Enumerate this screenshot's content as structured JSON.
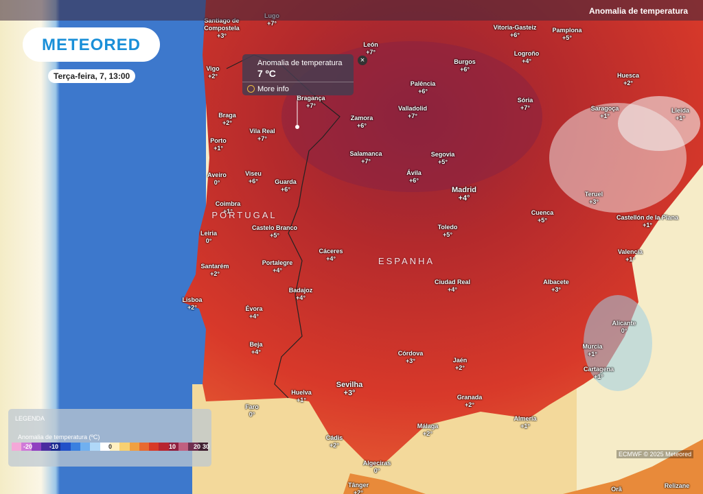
{
  "header": {
    "logo": "METEORED",
    "date": "Terça-feira, 7, 13:00",
    "layer": "Anomalia de temperatura"
  },
  "popup": {
    "title": "Anomalia de temperatura",
    "value": "7 ºC",
    "link": "More info"
  },
  "countries": [
    "PORTUGAL",
    "ESPANHA"
  ],
  "cities": [
    {
      "name": "Santiago de Compostela",
      "value": "+3°"
    },
    {
      "name": "Lugo",
      "value": "+7°"
    },
    {
      "name": "León",
      "value": "+7°"
    },
    {
      "name": "Vitoria-Gasteiz",
      "value": "+6°"
    },
    {
      "name": "Pamplona",
      "value": "+5°"
    },
    {
      "name": "Logroño",
      "value": "+4°"
    },
    {
      "name": "Burgos",
      "value": "+6°"
    },
    {
      "name": "Palência",
      "value": "+6°"
    },
    {
      "name": "Valladolid",
      "value": "+7°"
    },
    {
      "name": "Sória",
      "value": "+7°"
    },
    {
      "name": "Huesca",
      "value": "+2°"
    },
    {
      "name": "Saragoça",
      "value": "+1°"
    },
    {
      "name": "Lleida",
      "value": "+1°"
    },
    {
      "name": "Vigo",
      "value": "+2°"
    },
    {
      "name": "Braga",
      "value": "+2°"
    },
    {
      "name": "Vila Real",
      "value": "+7°"
    },
    {
      "name": "Bragança",
      "value": "+7°"
    },
    {
      "name": "Zamora",
      "value": "+6°"
    },
    {
      "name": "Porto",
      "value": "+1°"
    },
    {
      "name": "Aveiro",
      "value": "0°"
    },
    {
      "name": "Viseu",
      "value": "+6°"
    },
    {
      "name": "Guarda",
      "value": "+6°"
    },
    {
      "name": "Salamanca",
      "value": "+7°"
    },
    {
      "name": "Segovia",
      "value": "+5°"
    },
    {
      "name": "Ávila",
      "value": "+6°"
    },
    {
      "name": "Madrid",
      "value": "+4°"
    },
    {
      "name": "Teruel",
      "value": "+3°"
    },
    {
      "name": "Coimbra",
      "value": "+1°"
    },
    {
      "name": "Castelo Branco",
      "value": "+5°"
    },
    {
      "name": "Cuenca",
      "value": "+5°"
    },
    {
      "name": "Castellón de la Plana",
      "value": "+1°"
    },
    {
      "name": "Toledo",
      "value": "+5°"
    },
    {
      "name": "Leiria",
      "value": "0°"
    },
    {
      "name": "Valencia",
      "value": "+1°"
    },
    {
      "name": "Cáceres",
      "value": "+4°"
    },
    {
      "name": "Portalegre",
      "value": "+4°"
    },
    {
      "name": "Santarém",
      "value": "+2°"
    },
    {
      "name": "Ciudad Real",
      "value": "+4°"
    },
    {
      "name": "Albacete",
      "value": "+3°"
    },
    {
      "name": "Badajoz",
      "value": "+4°"
    },
    {
      "name": "Lisboa",
      "value": "+2°"
    },
    {
      "name": "Évora",
      "value": "+4°"
    },
    {
      "name": "Alicante",
      "value": "0°"
    },
    {
      "name": "Beja",
      "value": "+4°"
    },
    {
      "name": "Córdova",
      "value": "+3°"
    },
    {
      "name": "Murcia",
      "value": "+1°"
    },
    {
      "name": "Jaén",
      "value": "+2°"
    },
    {
      "name": "Cartagena",
      "value": "+1°"
    },
    {
      "name": "Sevilha",
      "value": "+3°"
    },
    {
      "name": "Huelva",
      "value": "+1°"
    },
    {
      "name": "Granada",
      "value": "+2°"
    },
    {
      "name": "Faro",
      "value": "0°"
    },
    {
      "name": "Almeria",
      "value": "+1°"
    },
    {
      "name": "Málaga",
      "value": "+2°"
    },
    {
      "name": "Cádis",
      "value": "+2°"
    },
    {
      "name": "Algeciras",
      "value": "0°"
    },
    {
      "name": "Tânger",
      "value": "+2°"
    },
    {
      "name": "Orã"
    },
    {
      "name": "Relizane"
    }
  ],
  "legend": {
    "title": "LEGENDA",
    "subtitle": "Anomalia de temperatura (ºC)",
    "ticks": [
      "-20",
      "-10",
      "0",
      "10",
      "20",
      "30"
    ]
  },
  "attribution": "ECMWF © 2025 Meteored"
}
